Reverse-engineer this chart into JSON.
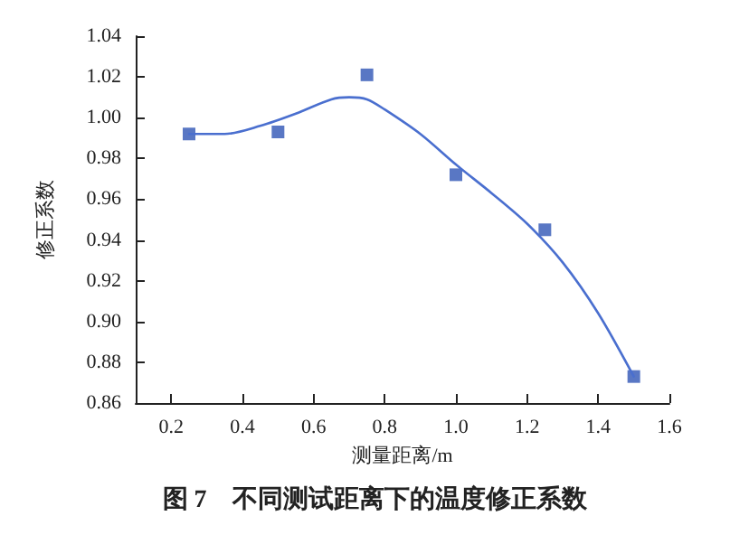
{
  "chart_data": {
    "type": "scatter",
    "title": "图 7　不同测试距离下的温度修正系数",
    "xlabel": "测量距离/m",
    "ylabel": "修正系数",
    "marker": "square",
    "x": [
      0.25,
      0.5,
      0.75,
      1.0,
      1.25,
      1.5
    ],
    "series": [
      {
        "color": "#2f55b5",
        "values": [
          0.992,
          0.993,
          1.021,
          0.972,
          0.945,
          0.873
        ]
      },
      {
        "type": "line",
        "color": "#4a6fcf",
        "marker": "none",
        "x": [
          0.25,
          0.35,
          0.45,
          0.55,
          0.65,
          0.7,
          0.75,
          0.8,
          0.9,
          1.0,
          1.1,
          1.2,
          1.3,
          1.4,
          1.5
        ],
        "values": [
          0.992,
          0.992,
          0.996,
          1.002,
          1.009,
          1.01,
          1.009,
          1.004,
          0.992,
          0.977,
          0.963,
          0.948,
          0.929,
          0.904,
          0.873
        ]
      }
    ],
    "xlim": [
      0.1,
      1.6
    ],
    "xticks": [
      0.2,
      0.4,
      0.6,
      0.8,
      {
        "value": 1,
        "label": "1.0"
      },
      1.2,
      1.4,
      1.6
    ],
    "ylim": [
      0.86,
      1.04
    ],
    "yticks": [
      0.86,
      0.88,
      {
        "value": 0.9,
        "label": "0.90"
      },
      0.92,
      0.94,
      0.96,
      0.98,
      {
        "value": 1,
        "label": "1.00"
      },
      1.02,
      1.04
    ]
  }
}
